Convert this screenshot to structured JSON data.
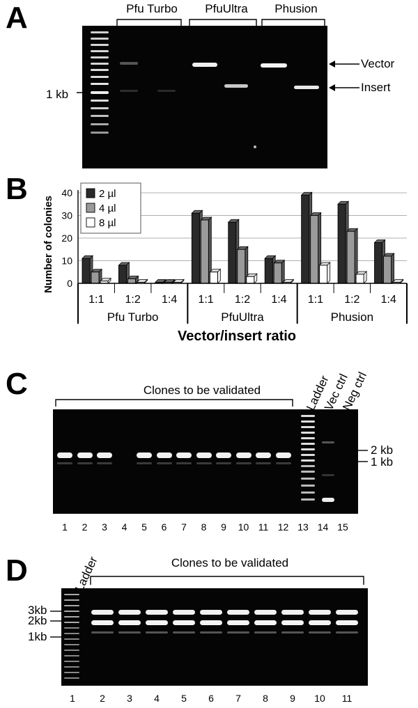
{
  "panelA": {
    "letter": "A",
    "enzymes": [
      "Pfu Turbo",
      "PfuUltra",
      "Phusion"
    ],
    "marker": "1 kb",
    "vector_label": "Vector",
    "insert_label": "Insert"
  },
  "panelB": {
    "letter": "B",
    "ylabel": "Number of colonies",
    "xlabel": "Vector/insert ratio",
    "legend": [
      "2 µl",
      "4 µl",
      "8 µl"
    ],
    "ratios": [
      "1:1",
      "1:2",
      "1:4"
    ],
    "groups": [
      "Pfu Turbo",
      "PfuUltra",
      "Phusion"
    ],
    "yticks": [
      "0",
      "10",
      "20",
      "30",
      "40"
    ]
  },
  "chart_data": {
    "type": "bar",
    "categories": [
      "1:1",
      "1:2",
      "1:4",
      "1:1",
      "1:2",
      "1:4",
      "1:1",
      "1:2",
      "1:4"
    ],
    "groups": [
      "Pfu Turbo",
      "PfuUltra",
      "Phusion"
    ],
    "series": [
      {
        "name": "2 µl",
        "values": [
          11,
          8,
          0,
          31,
          27,
          11,
          39,
          35,
          18
        ]
      },
      {
        "name": "4 µl",
        "values": [
          5,
          2,
          0,
          28,
          15,
          9,
          30,
          23,
          12
        ]
      },
      {
        "name": "8 µl",
        "values": [
          1,
          0,
          0,
          5,
          3,
          0,
          8,
          4,
          0
        ]
      }
    ],
    "ylabel": "Number of colonies",
    "xlabel": "Vector/insert ratio",
    "ylim": [
      0,
      40
    ],
    "grid": true,
    "legend_position": "top-left"
  },
  "panelC": {
    "letter": "C",
    "bracket_label": "Clones to be validated",
    "special_lanes": [
      "Ladder",
      "Vec ctrl",
      "Neg ctrl"
    ],
    "markers": [
      "2 kb",
      "1 kb"
    ],
    "lane_numbers": [
      "1",
      "2",
      "3",
      "4",
      "5",
      "6",
      "7",
      "8",
      "9",
      "10",
      "11",
      "12",
      "13",
      "14",
      "15"
    ]
  },
  "panelD": {
    "letter": "D",
    "ladder_label": "Ladder",
    "bracket_label": "Clones to be validated",
    "markers": [
      "3kb",
      "2kb",
      "1kb"
    ],
    "lane_numbers": [
      "1",
      "2",
      "3",
      "4",
      "5",
      "6",
      "7",
      "8",
      "9",
      "10",
      "11"
    ]
  },
  "colors": {
    "gel_bg": "#050505",
    "band": "#f2f2f2",
    "bar_2ul": "#2a2a2a",
    "bar_4ul": "#9a9a9a",
    "bar_8ul": "#ffffff"
  }
}
